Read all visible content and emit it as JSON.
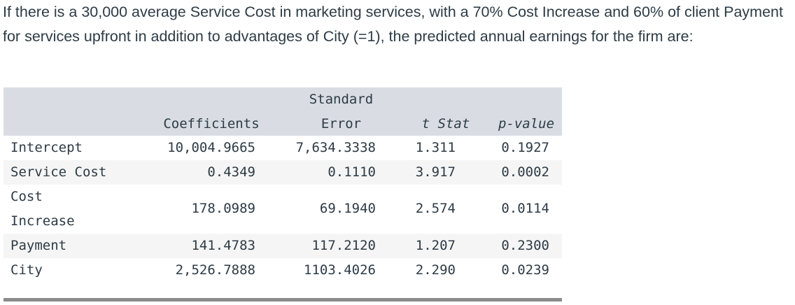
{
  "question": "If there is a 30,000 average Service Cost in marketing services, with a 70% Cost Increase and 60% of client Payment for services upfront in addition to advantages of City (=1), the predicted annual earnings for the firm are:",
  "table": {
    "headers": {
      "coefficients": "Coefficients",
      "std_error_line1": "Standard",
      "std_error_line2": "Error",
      "t_stat": "t Stat",
      "p_value": "p-value"
    },
    "rows": [
      {
        "label": "Intercept",
        "coef": "10,004.9665",
        "se": "7,634.3338",
        "t": "1.311",
        "p": "0.1927"
      },
      {
        "label": "Service Cost",
        "coef": "0.4349",
        "se": "0.1110",
        "t": "3.917",
        "p": "0.0002"
      },
      {
        "label_line1": "Cost",
        "label_line2": "Increase",
        "coef": "178.0989",
        "se": "69.1940",
        "t": "2.574",
        "p": "0.0114"
      },
      {
        "label": "Payment",
        "coef": "141.4783",
        "se": "117.2120",
        "t": "1.207",
        "p": "0.2300"
      },
      {
        "label": "City",
        "coef": "2,526.7888",
        "se": "1103.4026",
        "t": "2.290",
        "p": "0.0239"
      }
    ]
  }
}
